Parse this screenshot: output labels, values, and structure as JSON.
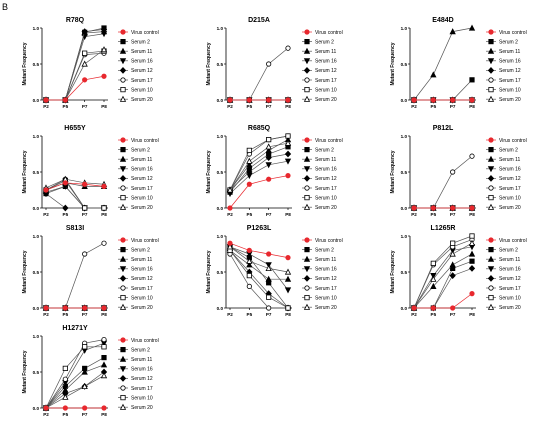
{
  "panel_letter": "B",
  "colors": {
    "virus_control": "#e8282e",
    "serum": "#000000",
    "serum_line": "#555555"
  },
  "markers": {
    "Virus control": "filled-circle",
    "Serum 2": "filled-square",
    "Serum 11": "filled-triangle-up",
    "Serum 16": "filled-triangle-down",
    "Serum 12": "filled-diamond",
    "Serum 17": "open-circle",
    "Serum 10": "open-square",
    "Serum 20": "open-triangle-up"
  },
  "chart_data": [
    {
      "type": "line",
      "title": "R78Q",
      "xlabel": "",
      "ylabel": "Mutant Frequency",
      "categories": [
        "P2",
        "P5",
        "P7",
        "P8"
      ],
      "ylim": [
        0,
        1.0
      ],
      "yticks": [
        0.0,
        0.5,
        1.0
      ],
      "legend": "right",
      "series": [
        {
          "name": "Virus control",
          "values": [
            0,
            0,
            0.28,
            0.33
          ]
        },
        {
          "name": "Serum 2",
          "values": [
            0,
            0,
            0.94,
            1.0
          ]
        },
        {
          "name": "Serum 11",
          "values": [
            0,
            0,
            0.93,
            0.95
          ]
        },
        {
          "name": "Serum 16",
          "values": [
            0,
            0,
            0.88,
            0.92
          ]
        },
        {
          "name": "Serum 12",
          "values": [
            0,
            0,
            0.95,
            0.98
          ]
        },
        {
          "name": "Serum 17",
          "values": [
            0,
            0,
            0.63,
            0.65
          ]
        },
        {
          "name": "Serum 10",
          "values": [
            0,
            0,
            0.65,
            0.68
          ]
        },
        {
          "name": "Serum 20",
          "values": [
            0,
            0,
            0.5,
            0.7
          ]
        }
      ]
    },
    {
      "type": "line",
      "title": "D215A",
      "xlabel": "",
      "ylabel": "Mutant Frequency",
      "categories": [
        "P2",
        "P5",
        "P7",
        "P8"
      ],
      "ylim": [
        0,
        1.0
      ],
      "yticks": [
        0.0,
        0.5,
        1.0
      ],
      "legend": "right",
      "series": [
        {
          "name": "Virus control",
          "values": [
            0,
            0,
            0,
            0
          ]
        },
        {
          "name": "Serum 2",
          "values": [
            0,
            0,
            0,
            0
          ]
        },
        {
          "name": "Serum 11",
          "values": [
            0,
            0,
            0,
            0
          ]
        },
        {
          "name": "Serum 16",
          "values": [
            0,
            0,
            0,
            0
          ]
        },
        {
          "name": "Serum 12",
          "values": [
            0,
            0,
            0,
            0
          ]
        },
        {
          "name": "Serum 17",
          "values": [
            0,
            0,
            0.5,
            0.72
          ]
        },
        {
          "name": "Serum 10",
          "values": [
            0,
            0,
            0,
            0
          ]
        },
        {
          "name": "Serum 20",
          "values": [
            0,
            0,
            0,
            0
          ]
        }
      ]
    },
    {
      "type": "line",
      "title": "E484D",
      "xlabel": "",
      "ylabel": "Mutant Frequency",
      "categories": [
        "P2",
        "P5",
        "P7",
        "P8"
      ],
      "ylim": [
        0,
        1.0
      ],
      "yticks": [
        0.0,
        0.5,
        1.0
      ],
      "legend": "right",
      "series": [
        {
          "name": "Virus control",
          "values": [
            0,
            0,
            0,
            0
          ]
        },
        {
          "name": "Serum 2",
          "values": [
            0,
            0,
            0,
            0.28
          ]
        },
        {
          "name": "Serum 11",
          "values": [
            0,
            0.35,
            0.95,
            1.0
          ]
        },
        {
          "name": "Serum 16",
          "values": [
            0,
            0,
            0,
            0
          ]
        },
        {
          "name": "Serum 12",
          "values": [
            0,
            0,
            0,
            0
          ]
        },
        {
          "name": "Serum 17",
          "values": [
            0,
            0,
            0,
            0
          ]
        },
        {
          "name": "Serum 10",
          "values": [
            0,
            0,
            0,
            0
          ]
        },
        {
          "name": "Serum 20",
          "values": [
            0,
            0,
            0,
            0
          ]
        }
      ]
    },
    {
      "type": "line",
      "title": "H655Y",
      "xlabel": "",
      "ylabel": "Mutant Frequency",
      "categories": [
        "P2",
        "P5",
        "P7",
        "P8"
      ],
      "ylim": [
        0,
        1.0
      ],
      "yticks": [
        0.0,
        0.5,
        1.0
      ],
      "legend": "right",
      "series": [
        {
          "name": "Virus control",
          "values": [
            0.25,
            0.35,
            0.33,
            0.3
          ]
        },
        {
          "name": "Serum 2",
          "values": [
            0.2,
            0.3,
            0,
            0
          ]
        },
        {
          "name": "Serum 11",
          "values": [
            0.25,
            0.35,
            0.3,
            0.3
          ]
        },
        {
          "name": "Serum 16",
          "values": [
            0.22,
            0.3,
            0,
            0
          ]
        },
        {
          "name": "Serum 12",
          "values": [
            0.2,
            0,
            0,
            0
          ]
        },
        {
          "name": "Serum 17",
          "values": [
            0.25,
            0.4,
            0,
            0
          ]
        },
        {
          "name": "Serum 10",
          "values": [
            0.25,
            0.38,
            0,
            0
          ]
        },
        {
          "name": "Serum 20",
          "values": [
            0.28,
            0.4,
            0.35,
            0.33
          ]
        }
      ]
    },
    {
      "type": "line",
      "title": "R685Q",
      "xlabel": "",
      "ylabel": "Mutant Frequency",
      "categories": [
        "P2",
        "P5",
        "P7",
        "P8"
      ],
      "ylim": [
        0,
        1.0
      ],
      "yticks": [
        0.0,
        0.5,
        1.0
      ],
      "legend": "right",
      "series": [
        {
          "name": "Virus control",
          "values": [
            0,
            0.33,
            0.4,
            0.45
          ]
        },
        {
          "name": "Serum 2",
          "values": [
            0.22,
            0.55,
            0.75,
            0.85
          ]
        },
        {
          "name": "Serum 11",
          "values": [
            0.25,
            0.6,
            0.8,
            0.95
          ]
        },
        {
          "name": "Serum 16",
          "values": [
            0.2,
            0.45,
            0.6,
            0.65
          ]
        },
        {
          "name": "Serum 12",
          "values": [
            0.25,
            0.5,
            0.7,
            0.75
          ]
        },
        {
          "name": "Serum 17",
          "values": [
            0.25,
            0.75,
            0.95,
            1.0
          ]
        },
        {
          "name": "Serum 10",
          "values": [
            0.25,
            0.8,
            0.95,
            1.0
          ]
        },
        {
          "name": "Serum 20",
          "values": [
            0.25,
            0.65,
            0.85,
            0.9
          ]
        }
      ]
    },
    {
      "type": "line",
      "title": "P812L",
      "xlabel": "",
      "ylabel": "Mutant Frequency",
      "categories": [
        "P2",
        "P5",
        "P7",
        "P8"
      ],
      "ylim": [
        0,
        1.0
      ],
      "yticks": [
        0.0,
        0.5,
        1.0
      ],
      "legend": "right",
      "series": [
        {
          "name": "Virus control",
          "values": [
            0,
            0,
            0,
            0
          ]
        },
        {
          "name": "Serum 2",
          "values": [
            0,
            0,
            0,
            0
          ]
        },
        {
          "name": "Serum 11",
          "values": [
            0,
            0,
            0,
            0
          ]
        },
        {
          "name": "Serum 16",
          "values": [
            0,
            0,
            0,
            0
          ]
        },
        {
          "name": "Serum 12",
          "values": [
            0,
            0,
            0,
            0
          ]
        },
        {
          "name": "Serum 17",
          "values": [
            0,
            0,
            0.5,
            0.72
          ]
        },
        {
          "name": "Serum 10",
          "values": [
            0,
            0,
            0,
            0
          ]
        },
        {
          "name": "Serum 20",
          "values": [
            0,
            0,
            0,
            0
          ]
        }
      ]
    },
    {
      "type": "line",
      "title": "S813I",
      "xlabel": "",
      "ylabel": "Mutant Frequency",
      "categories": [
        "P2",
        "P5",
        "P7",
        "P8"
      ],
      "ylim": [
        0,
        1.0
      ],
      "yticks": [
        0.0,
        0.5,
        1.0
      ],
      "legend": "right",
      "series": [
        {
          "name": "Virus control",
          "values": [
            0,
            0,
            0,
            0
          ]
        },
        {
          "name": "Serum 2",
          "values": [
            0,
            0,
            0,
            0
          ]
        },
        {
          "name": "Serum 11",
          "values": [
            0,
            0,
            0,
            0
          ]
        },
        {
          "name": "Serum 16",
          "values": [
            0,
            0,
            0,
            0
          ]
        },
        {
          "name": "Serum 12",
          "values": [
            0,
            0,
            0,
            0
          ]
        },
        {
          "name": "Serum 17",
          "values": [
            0,
            0,
            0.75,
            0.9
          ]
        },
        {
          "name": "Serum 10",
          "values": [
            0,
            0,
            0,
            0
          ]
        },
        {
          "name": "Serum 20",
          "values": [
            0,
            0,
            0,
            0
          ]
        }
      ]
    },
    {
      "type": "line",
      "title": "P1263L",
      "xlabel": "",
      "ylabel": "Mutant Frequency",
      "categories": [
        "P2",
        "P5",
        "P7",
        "P8"
      ],
      "ylim": [
        0,
        1.0
      ],
      "yticks": [
        0.0,
        0.5,
        1.0
      ],
      "legend": "right",
      "series": [
        {
          "name": "Virus control",
          "values": [
            0.9,
            0.8,
            0.75,
            0.7
          ]
        },
        {
          "name": "Serum 2",
          "values": [
            0.85,
            0.7,
            0.35,
            0
          ]
        },
        {
          "name": "Serum 11",
          "values": [
            0.8,
            0.6,
            0.4,
            0.4
          ]
        },
        {
          "name": "Serum 16",
          "values": [
            0.85,
            0.75,
            0.6,
            0.25
          ]
        },
        {
          "name": "Serum 12",
          "values": [
            0.8,
            0.5,
            0.2,
            0
          ]
        },
        {
          "name": "Serum 17",
          "values": [
            0.75,
            0.3,
            0,
            0
          ]
        },
        {
          "name": "Serum 10",
          "values": [
            0.8,
            0.45,
            0.15,
            0
          ]
        },
        {
          "name": "Serum 20",
          "values": [
            0.85,
            0.65,
            0.55,
            0.5
          ]
        }
      ]
    },
    {
      "type": "line",
      "title": "L1265R",
      "xlabel": "",
      "ylabel": "Mutant Frequency",
      "categories": [
        "P2",
        "P5",
        "P7",
        "P8"
      ],
      "ylim": [
        0,
        1.0
      ],
      "yticks": [
        0.0,
        0.5,
        1.0
      ],
      "legend": "right",
      "series": [
        {
          "name": "Virus control",
          "values": [
            0,
            0,
            0,
            0.2
          ]
        },
        {
          "name": "Serum 2",
          "values": [
            0,
            0,
            0.55,
            0.65
          ]
        },
        {
          "name": "Serum 11",
          "values": [
            0,
            0.3,
            0.6,
            0.75
          ]
        },
        {
          "name": "Serum 16",
          "values": [
            0,
            0.45,
            0.8,
            0.85
          ]
        },
        {
          "name": "Serum 12",
          "values": [
            0,
            0,
            0.45,
            0.55
          ]
        },
        {
          "name": "Serum 17",
          "values": [
            0,
            0.6,
            0.85,
            0.95
          ]
        },
        {
          "name": "Serum 10",
          "values": [
            0,
            0.62,
            0.9,
            1.0
          ]
        },
        {
          "name": "Serum 20",
          "values": [
            0,
            0.4,
            0.75,
            0.9
          ]
        }
      ]
    },
    {
      "type": "line",
      "title": "H1271Y",
      "xlabel": "",
      "ylabel": "Mutant Frequency",
      "categories": [
        "P2",
        "P5",
        "P7",
        "P8"
      ],
      "ylim": [
        0,
        1.0
      ],
      "yticks": [
        0.0,
        0.5,
        1.0
      ],
      "legend": "right",
      "series": [
        {
          "name": "Virus control",
          "values": [
            0,
            0,
            0,
            0
          ]
        },
        {
          "name": "Serum 2",
          "values": [
            0,
            0.3,
            0.55,
            0.7
          ]
        },
        {
          "name": "Serum 11",
          "values": [
            0,
            0.25,
            0.5,
            0.6
          ]
        },
        {
          "name": "Serum 16",
          "values": [
            0,
            0.35,
            0.8,
            0.9
          ]
        },
        {
          "name": "Serum 12",
          "values": [
            0,
            0.2,
            0.3,
            0.5
          ]
        },
        {
          "name": "Serum 17",
          "values": [
            0,
            0.4,
            0.9,
            0.95
          ]
        },
        {
          "name": "Serum 10",
          "values": [
            0,
            0.55,
            0.85,
            0.85
          ]
        },
        {
          "name": "Serum 20",
          "values": [
            0,
            0.15,
            0.3,
            0.45
          ]
        }
      ]
    }
  ]
}
